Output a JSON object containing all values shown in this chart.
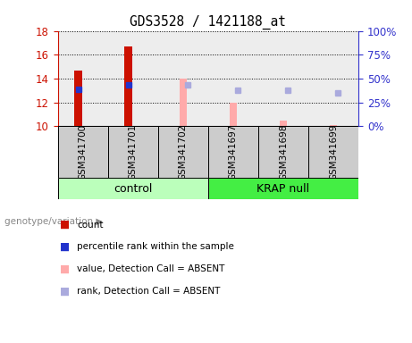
{
  "title": "GDS3528 / 1421188_at",
  "samples": [
    "GSM341700",
    "GSM341701",
    "GSM341702",
    "GSM341697",
    "GSM341698",
    "GSM341699"
  ],
  "ylim_left": [
    10,
    18
  ],
  "ylim_right": [
    0,
    100
  ],
  "yticks_left": [
    10,
    12,
    14,
    16,
    18
  ],
  "yticks_right": [
    0,
    25,
    50,
    75,
    100
  ],
  "ytick_labels_right": [
    "0%",
    "25%",
    "50%",
    "75%",
    "100%"
  ],
  "count_values": [
    14.65,
    16.7,
    null,
    null,
    null,
    null
  ],
  "count_base": 10,
  "percentile_rank_values": [
    13.1,
    13.5,
    null,
    null,
    null,
    null
  ],
  "absent_value_bars": [
    null,
    null,
    [
      10,
      14.0
    ],
    [
      10,
      12.0
    ],
    [
      10,
      10.45
    ],
    [
      10,
      10.1
    ]
  ],
  "absent_rank_markers": [
    null,
    null,
    13.5,
    13.0,
    13.0,
    12.8
  ],
  "color_count": "#cc1100",
  "color_percentile": "#2233cc",
  "color_absent_value": "#ffaaaa",
  "color_absent_rank": "#aaaadd",
  "color_ctrl_bg": "#bbffbb",
  "color_krap_bg": "#44ee44",
  "color_sample_bg": "#cccccc",
  "color_left_axis": "#cc1100",
  "color_right_axis": "#3333cc",
  "ctrl_label": "control",
  "krap_label": "KRAP null",
  "genotype_label": "genotype/variation",
  "legend_items": [
    [
      "#cc1100",
      "count"
    ],
    [
      "#2233cc",
      "percentile rank within the sample"
    ],
    [
      "#ffaaaa",
      "value, Detection Call = ABSENT"
    ],
    [
      "#aaaadd",
      "rank, Detection Call = ABSENT"
    ]
  ]
}
